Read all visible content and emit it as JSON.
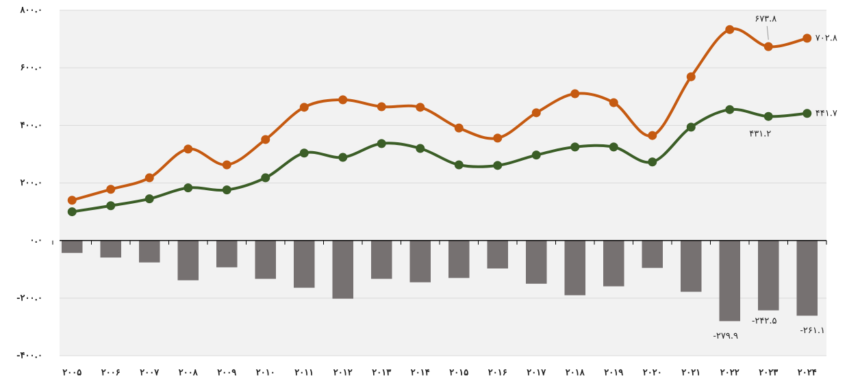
{
  "chart_data": {
    "type": "combo",
    "categories": [
      "۲۰۰۵",
      "۲۰۰۶",
      "۲۰۰۷",
      "۲۰۰۸",
      "۲۰۰۹",
      "۲۰۱۰",
      "۲۰۱۱",
      "۲۰۱۲",
      "۲۰۱۳",
      "۲۰۱۴",
      "۲۰۱۵",
      "۲۰۱۶",
      "۲۰۱۷",
      "۲۰۱۸",
      "۲۰۱۹",
      "۲۰۲۰",
      "۲۰۲۱",
      "۲۰۲۲",
      "۲۰۲۳",
      "۲۰۲۴"
    ],
    "ylim": [
      -400,
      800
    ],
    "yticks": [
      {
        "value": -400,
        "label": "-۴۰۰.۰"
      },
      {
        "value": -200,
        "label": "-۲۰۰.۰"
      },
      {
        "value": 0,
        "label": "۰.۰"
      },
      {
        "value": 200,
        "label": "۲۰۰.۰"
      },
      {
        "value": 400,
        "label": "۴۰۰.۰"
      },
      {
        "value": 600,
        "label": "۶۰۰.۰"
      },
      {
        "value": 800,
        "label": "۸۰۰.۰"
      }
    ],
    "grid": true,
    "series": [
      {
        "type": "bar",
        "color": "#767171",
        "values": [
          -43,
          -59,
          -76,
          -138,
          -93,
          -133,
          -164,
          -202,
          -133,
          -145,
          -130,
          -97,
          -150,
          -190,
          -159,
          -95,
          -178,
          -279.9,
          -242.5,
          -261.1
        ],
        "value_labels": [
          null,
          null,
          null,
          null,
          null,
          null,
          null,
          null,
          null,
          null,
          null,
          null,
          null,
          null,
          null,
          null,
          null,
          "-۲۷۹.۹",
          "-۲۴۲.۵",
          "-۲۶۱.۱"
        ]
      },
      {
        "type": "line",
        "color": "#c55a11",
        "values": [
          140,
          178,
          218,
          318,
          263,
          351,
          463,
          489,
          465,
          463,
          391,
          356,
          444,
          510,
          479,
          365,
          569,
          733,
          673.8,
          702.8
        ],
        "value_labels": [
          null,
          null,
          null,
          null,
          null,
          null,
          null,
          null,
          null,
          null,
          null,
          null,
          null,
          null,
          null,
          null,
          null,
          null,
          "۶۷۳.۸",
          "۷۰۲.۸"
        ]
      },
      {
        "type": "line",
        "color": "#3b5e27",
        "values": [
          100,
          121,
          145,
          183,
          176,
          218,
          304,
          289,
          337,
          320,
          263,
          261,
          297,
          325,
          325,
          273,
          394,
          455,
          431.2,
          441.7
        ],
        "value_labels": [
          null,
          null,
          null,
          null,
          null,
          null,
          null,
          null,
          null,
          null,
          null,
          null,
          null,
          null,
          null,
          null,
          null,
          null,
          "۴۳۱.۲",
          "۴۴۱.۷"
        ]
      }
    ]
  }
}
